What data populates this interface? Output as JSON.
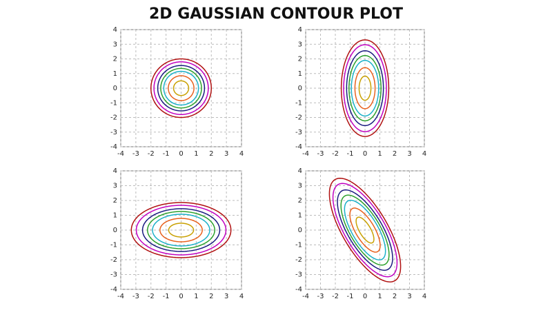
{
  "title": "2D GAUSSIAN CONTOUR PLOT",
  "chart_data": [
    {
      "type": "contour",
      "xlim": [
        -4,
        4
      ],
      "ylim": [
        -4,
        4
      ],
      "xticks": [
        -4,
        -3,
        -2,
        -1,
        0,
        1,
        2,
        3,
        4
      ],
      "yticks": [
        -4,
        -3,
        -2,
        -1,
        0,
        1,
        2,
        3,
        4
      ],
      "grid": true,
      "sx": 1,
      "sy": 1,
      "rho": 0,
      "levels": [
        0.5,
        0.85,
        1.15,
        1.35,
        1.55,
        1.8,
        2.0
      ],
      "colors": [
        "#c8a000",
        "#e8601c",
        "#1ab0c8",
        "#2ca02c",
        "#1a1a80",
        "#c000c0",
        "#b01010"
      ]
    },
    {
      "type": "contour",
      "xlim": [
        -4,
        4
      ],
      "ylim": [
        -4,
        4
      ],
      "xticks": [
        -4,
        -3,
        -2,
        -1,
        0,
        1,
        2,
        3,
        4
      ],
      "yticks": [
        -4,
        -3,
        -2,
        -1,
        0,
        1,
        2,
        3,
        4
      ],
      "grid": true,
      "sx": 0.8,
      "sy": 1.65,
      "rho": 0,
      "levels": [
        0.5,
        0.85,
        1.15,
        1.35,
        1.55,
        1.8,
        2.0
      ],
      "colors": [
        "#c8a000",
        "#e8601c",
        "#1ab0c8",
        "#2ca02c",
        "#1a1a80",
        "#c000c0",
        "#b01010"
      ]
    },
    {
      "type": "contour",
      "xlim": [
        -4,
        4
      ],
      "ylim": [
        -4,
        4
      ],
      "xticks": [
        -4,
        -3,
        -2,
        -1,
        0,
        1,
        2,
        3,
        4
      ],
      "yticks": [
        -4,
        -3,
        -2,
        -1,
        0,
        1,
        2,
        3,
        4
      ],
      "grid": true,
      "sx": 1.65,
      "sy": 0.93,
      "rho": 0,
      "levels": [
        0.5,
        0.85,
        1.15,
        1.35,
        1.55,
        1.8,
        2.0
      ],
      "colors": [
        "#c8a000",
        "#e8601c",
        "#1ab0c8",
        "#2ca02c",
        "#1a1a80",
        "#c000c0",
        "#b01010"
      ]
    },
    {
      "type": "contour",
      "xlim": [
        -4,
        4
      ],
      "ylim": [
        -4,
        4
      ],
      "xticks": [
        -4,
        -3,
        -2,
        -1,
        0,
        1,
        2,
        3,
        4
      ],
      "yticks": [
        -4,
        -3,
        -2,
        -1,
        0,
        1,
        2,
        3,
        4
      ],
      "grid": true,
      "sx": 1.2,
      "sy": 1.75,
      "rho": -0.7,
      "levels": [
        0.5,
        0.85,
        1.15,
        1.35,
        1.55,
        1.8,
        2.0
      ],
      "colors": [
        "#c8a000",
        "#e8601c",
        "#1ab0c8",
        "#2ca02c",
        "#1a1a80",
        "#c000c0",
        "#b01010"
      ]
    }
  ]
}
